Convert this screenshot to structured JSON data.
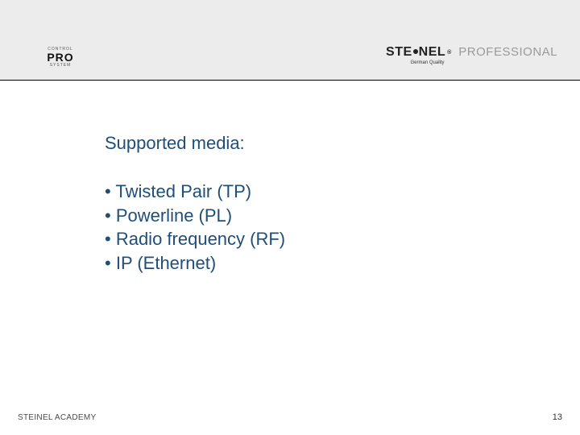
{
  "header": {
    "logo_left": {
      "above": "CONTROL",
      "main": "PRO",
      "below": "SYSTEM"
    },
    "logo_right": {
      "brand_left": "STE",
      "brand_right": "NEL",
      "registered": "®",
      "suffix": "PROFESSIONAL",
      "tagline": "German Quality"
    }
  },
  "content": {
    "heading": "Supported media:",
    "bullets": [
      "Twisted Pair (TP)",
      "Powerline (PL)",
      "Radio frequency (RF)",
      "IP (Ethernet)"
    ]
  },
  "footer": {
    "left": "STEINEL ACADEMY",
    "page": "13"
  },
  "style": {
    "background": "#ffffff",
    "header_background": "#ececec",
    "header_border": "#000000",
    "text_color": "#1f4e79",
    "heading_fontsize_pt": 17,
    "bullet_fontsize_pt": 17,
    "footer_color": "#4a4a4a",
    "brand_suffix_color": "#9a9a9a"
  }
}
